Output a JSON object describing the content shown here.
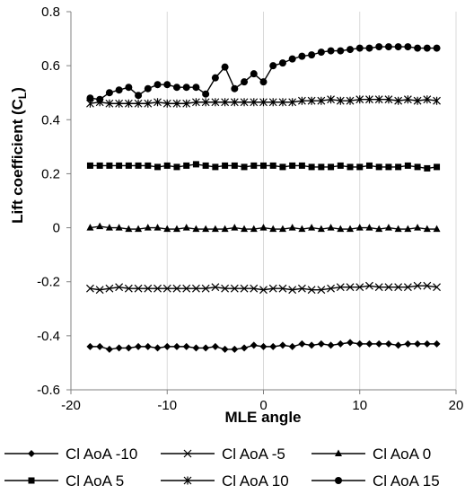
{
  "chart_data": {
    "type": "line",
    "xlabel": "MLE angle",
    "ylabel_main": "Lift coefficient (C",
    "ylabel_sub": "L",
    "ylabel_close": ")",
    "xlim": [
      -20,
      20
    ],
    "ylim": [
      -0.6,
      0.8
    ],
    "xticks": [
      -20,
      -10,
      0,
      10,
      20
    ],
    "yticks": [
      -0.6,
      -0.4,
      -0.2,
      0,
      0.2,
      0.4,
      0.6,
      0.8
    ],
    "xtick_labels": [
      "-20",
      "-10",
      "0",
      "10",
      "20"
    ],
    "ytick_labels": [
      "-0.6",
      "-0.4",
      "-0.2",
      "0",
      "0.2",
      "0.4",
      "0.6",
      "0.8"
    ],
    "grid": "vertical",
    "legend_position": "bottom",
    "x": [
      -18,
      -17,
      -16,
      -15,
      -14,
      -13,
      -12,
      -11,
      -10,
      -9,
      -8,
      -7,
      -6,
      -5,
      -4,
      -3,
      -2,
      -1,
      0,
      1,
      2,
      3,
      4,
      5,
      6,
      7,
      8,
      9,
      10,
      11,
      12,
      13,
      14,
      15,
      16,
      17,
      18
    ],
    "series": [
      {
        "name": "Cl AoA -10",
        "marker": "diamond",
        "values": [
          -0.44,
          -0.44,
          -0.45,
          -0.445,
          -0.445,
          -0.44,
          -0.44,
          -0.445,
          -0.44,
          -0.44,
          -0.44,
          -0.445,
          -0.445,
          -0.44,
          -0.45,
          -0.45,
          -0.445,
          -0.435,
          -0.44,
          -0.44,
          -0.435,
          -0.44,
          -0.43,
          -0.435,
          -0.43,
          -0.435,
          -0.43,
          -0.425,
          -0.43,
          -0.43,
          -0.43,
          -0.43,
          -0.435,
          -0.43,
          -0.43,
          -0.43,
          -0.43
        ]
      },
      {
        "name": "Cl AoA -5",
        "marker": "x",
        "values": [
          -0.225,
          -0.23,
          -0.225,
          -0.22,
          -0.225,
          -0.225,
          -0.225,
          -0.225,
          -0.225,
          -0.225,
          -0.225,
          -0.225,
          -0.225,
          -0.22,
          -0.225,
          -0.225,
          -0.225,
          -0.225,
          -0.23,
          -0.225,
          -0.225,
          -0.23,
          -0.225,
          -0.23,
          -0.23,
          -0.225,
          -0.22,
          -0.22,
          -0.22,
          -0.215,
          -0.22,
          -0.22,
          -0.22,
          -0.22,
          -0.215,
          -0.215,
          -0.22
        ]
      },
      {
        "name": "Cl AoA 0",
        "marker": "triangle",
        "values": [
          0,
          0.005,
          0,
          0,
          -0.005,
          -0.005,
          0,
          0,
          -0.005,
          -0.005,
          0,
          -0.005,
          -0.005,
          -0.005,
          -0.005,
          0,
          -0.005,
          -0.005,
          0,
          -0.005,
          -0.005,
          0,
          -0.005,
          0,
          -0.005,
          0,
          -0.005,
          -0.005,
          0,
          0,
          -0.005,
          0,
          -0.005,
          -0.005,
          0,
          -0.005,
          -0.005
        ]
      },
      {
        "name": "Cl AoA 5",
        "marker": "square",
        "values": [
          0.23,
          0.23,
          0.23,
          0.23,
          0.23,
          0.23,
          0.23,
          0.225,
          0.23,
          0.225,
          0.23,
          0.235,
          0.23,
          0.225,
          0.23,
          0.23,
          0.225,
          0.23,
          0.23,
          0.23,
          0.225,
          0.23,
          0.23,
          0.225,
          0.225,
          0.225,
          0.23,
          0.225,
          0.225,
          0.23,
          0.225,
          0.225,
          0.225,
          0.23,
          0.225,
          0.22,
          0.225
        ]
      },
      {
        "name": "Cl AoA 10",
        "marker": "asterisk",
        "values": [
          0.46,
          0.465,
          0.46,
          0.46,
          0.46,
          0.46,
          0.46,
          0.465,
          0.46,
          0.46,
          0.46,
          0.465,
          0.465,
          0.465,
          0.465,
          0.465,
          0.465,
          0.465,
          0.465,
          0.465,
          0.465,
          0.465,
          0.47,
          0.47,
          0.47,
          0.475,
          0.47,
          0.47,
          0.475,
          0.475,
          0.475,
          0.475,
          0.47,
          0.475,
          0.47,
          0.475,
          0.47
        ]
      },
      {
        "name": "Cl AoA 15",
        "marker": "circle",
        "values": [
          0.48,
          0.475,
          0.5,
          0.51,
          0.52,
          0.49,
          0.515,
          0.53,
          0.53,
          0.52,
          0.52,
          0.52,
          0.495,
          0.555,
          0.595,
          0.515,
          0.54,
          0.57,
          0.54,
          0.6,
          0.61,
          0.625,
          0.635,
          0.64,
          0.65,
          0.655,
          0.655,
          0.66,
          0.665,
          0.665,
          0.67,
          0.67,
          0.67,
          0.67,
          0.665,
          0.665,
          0.665
        ]
      }
    ]
  }
}
